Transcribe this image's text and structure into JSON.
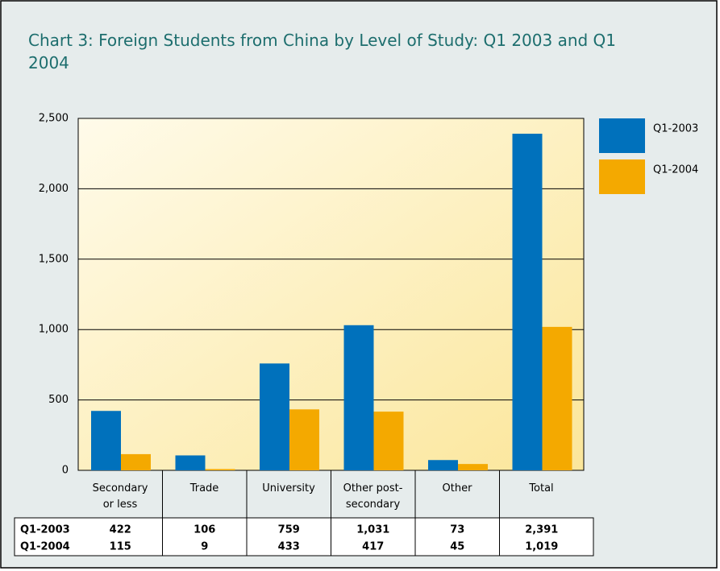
{
  "chart_data": {
    "type": "bar",
    "title": "Chart 3: Foreign Students from China by Level of Study: Q1 2003 and Q1 2004",
    "categories": [
      "Secondary\nor less",
      "Trade",
      "University",
      "Other post-\nsecondary",
      "Other",
      "Total"
    ],
    "series": [
      {
        "name": "Q1-2003",
        "color": "#0071bc",
        "values": [
          422,
          106,
          759,
          1031,
          73,
          2391
        ],
        "value_labels": [
          "422",
          "106",
          "759",
          "1,031",
          "73",
          "2,391"
        ]
      },
      {
        "name": "Q1-2004",
        "color": "#f4a900",
        "values": [
          115,
          9,
          433,
          417,
          45,
          1019
        ],
        "value_labels": [
          "115",
          "9",
          "433",
          "417",
          "45",
          "1,019"
        ]
      }
    ],
    "ylim": [
      0,
      2500
    ],
    "yticks": [
      0,
      500,
      {
        "value": 1000,
        "label": "1,000"
      },
      {
        "value": 1500,
        "label": "1,500"
      },
      {
        "value": 2000,
        "label": "2,000"
      },
      {
        "value": 2500,
        "label": "2,500"
      }
    ],
    "grid": true,
    "legend": "right"
  }
}
